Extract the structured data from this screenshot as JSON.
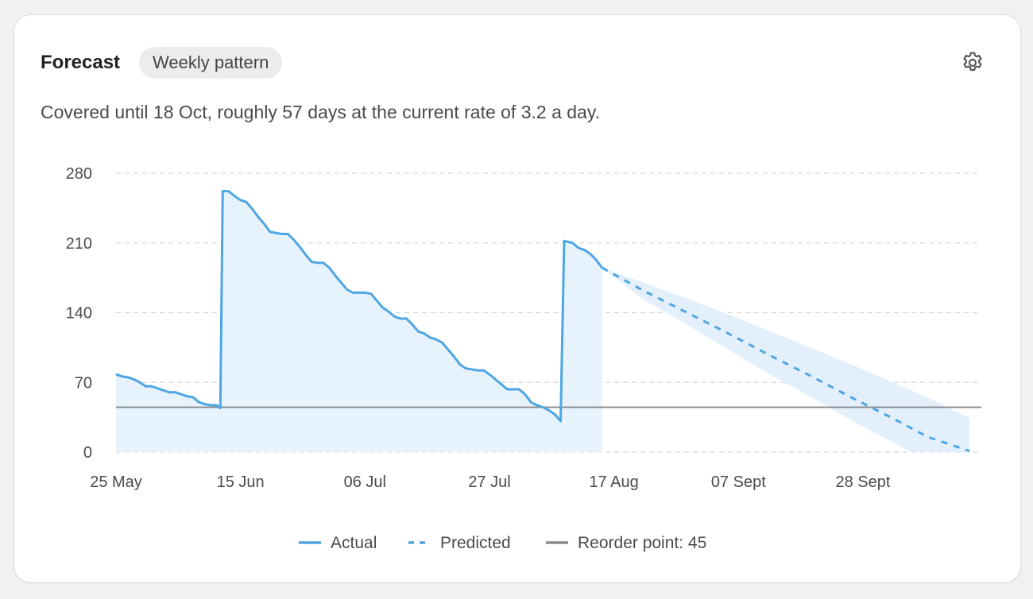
{
  "header": {
    "title": "Forecast",
    "pattern_pill": "Weekly pattern",
    "settings_icon": "gear-icon",
    "summary": "Covered until 18 Oct, roughly 57 days at the current rate of 3.2 a day."
  },
  "colors": {
    "actual": "#4ea6e2",
    "actual_fill": "#e7f3fc",
    "predicted": "#4ea6e2",
    "band": "#e3f0fb",
    "reorder": "#8c8c8c",
    "grid": "#d9d9d9"
  },
  "chart_data": {
    "type": "line",
    "x_unit": "date",
    "x_tick_labels": [
      "25 May",
      "15 Jun",
      "06 Jul",
      "27 Jul",
      "17 Aug",
      "07 Sept",
      "28 Sept"
    ],
    "x_tick_days": [
      0,
      21,
      42,
      63,
      84,
      105,
      126
    ],
    "x_range_days": [
      0,
      146
    ],
    "y_ticks": [
      0,
      70,
      140,
      210,
      280
    ],
    "ylim": [
      0,
      280
    ],
    "grid": true,
    "legend_position": "bottom",
    "series": [
      {
        "name": "Actual",
        "style": "solid",
        "points": [
          [
            0,
            78
          ],
          [
            1,
            76
          ],
          [
            2,
            75
          ],
          [
            3,
            73
          ],
          [
            4,
            70
          ],
          [
            5,
            66
          ],
          [
            6,
            66
          ],
          [
            7,
            64
          ],
          [
            8,
            62
          ],
          [
            9,
            60
          ],
          [
            10,
            60
          ],
          [
            11,
            58
          ],
          [
            12,
            56
          ],
          [
            13,
            55
          ],
          [
            14,
            50
          ],
          [
            15,
            48
          ],
          [
            16,
            47
          ],
          [
            17,
            47
          ],
          [
            17.6,
            44
          ],
          [
            18,
            262
          ],
          [
            19,
            262
          ],
          [
            20,
            257
          ],
          [
            21,
            253
          ],
          [
            22,
            251
          ],
          [
            23,
            244
          ],
          [
            24,
            236
          ],
          [
            25,
            229
          ],
          [
            26,
            221
          ],
          [
            27,
            220
          ],
          [
            28,
            219
          ],
          [
            29,
            219
          ],
          [
            30,
            213
          ],
          [
            31,
            206
          ],
          [
            32,
            198
          ],
          [
            33,
            191
          ],
          [
            34,
            190
          ],
          [
            35,
            190
          ],
          [
            36,
            185
          ],
          [
            37,
            177
          ],
          [
            38,
            170
          ],
          [
            39,
            163
          ],
          [
            40,
            160
          ],
          [
            41,
            160
          ],
          [
            42,
            160
          ],
          [
            43,
            159
          ],
          [
            44,
            152
          ],
          [
            45,
            145
          ],
          [
            46,
            141
          ],
          [
            47,
            136
          ],
          [
            48,
            134
          ],
          [
            49,
            134
          ],
          [
            50,
            128
          ],
          [
            51,
            121
          ],
          [
            52,
            119
          ],
          [
            53,
            115
          ],
          [
            54,
            113
          ],
          [
            55,
            110
          ],
          [
            56,
            103
          ],
          [
            57,
            96
          ],
          [
            58,
            88
          ],
          [
            59,
            84
          ],
          [
            60,
            83
          ],
          [
            61,
            82
          ],
          [
            62,
            82
          ],
          [
            63,
            78
          ],
          [
            64,
            73
          ],
          [
            65,
            68
          ],
          [
            66,
            63
          ],
          [
            67,
            63
          ],
          [
            68,
            63
          ],
          [
            69,
            58
          ],
          [
            70,
            50
          ],
          [
            71,
            47
          ],
          [
            72,
            45
          ],
          [
            73,
            42
          ],
          [
            74,
            38
          ],
          [
            75,
            31
          ],
          [
            75.6,
            212
          ],
          [
            77,
            210
          ],
          [
            78,
            205
          ],
          [
            79,
            203
          ],
          [
            80,
            199
          ],
          [
            81,
            193
          ],
          [
            82,
            185
          ]
        ]
      },
      {
        "name": "Predicted",
        "style": "dashed",
        "points": [
          [
            82,
            185
          ],
          [
            89,
            162
          ],
          [
            96,
            141
          ],
          [
            103,
            120
          ],
          [
            110,
            98
          ],
          [
            117,
            77
          ],
          [
            124,
            55
          ],
          [
            131,
            34
          ],
          [
            137,
            15
          ],
          [
            144,
            1
          ]
        ],
        "band_upper": [
          [
            82,
            185
          ],
          [
            89,
            170
          ],
          [
            96,
            155
          ],
          [
            103,
            139
          ],
          [
            110,
            122
          ],
          [
            117,
            105
          ],
          [
            124,
            88
          ],
          [
            131,
            70
          ],
          [
            138,
            52
          ],
          [
            144,
            34
          ]
        ],
        "band_lower": [
          [
            82,
            185
          ],
          [
            89,
            153
          ],
          [
            96,
            129
          ],
          [
            103,
            104
          ],
          [
            110,
            79
          ],
          [
            117,
            56
          ],
          [
            124,
            32
          ],
          [
            131,
            10
          ],
          [
            134,
            0
          ],
          [
            144,
            0
          ]
        ]
      },
      {
        "name": "Reorder point: 45",
        "style": "solid-gray",
        "value": 45
      }
    ]
  },
  "legend": {
    "actual": "Actual",
    "predicted": "Predicted",
    "reorder": "Reorder point: 45"
  }
}
